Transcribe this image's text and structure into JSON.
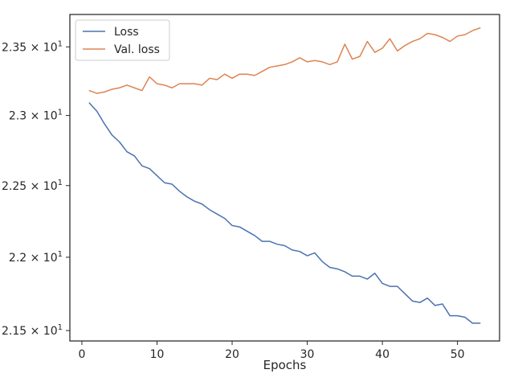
{
  "chart_data": {
    "type": "line",
    "title": "",
    "xlabel": "Epochs",
    "ylabel": "",
    "yscale": "log",
    "xlim": [
      -1.6,
      55.6
    ],
    "ylim": [
      21.43,
      23.74
    ],
    "grid": false,
    "legend_position": "top-left",
    "x_ticks": [
      {
        "value": 0,
        "label": "0"
      },
      {
        "value": 10,
        "label": "10"
      },
      {
        "value": 20,
        "label": "20"
      },
      {
        "value": 30,
        "label": "30"
      },
      {
        "value": 40,
        "label": "40"
      },
      {
        "value": 50,
        "label": "50"
      }
    ],
    "y_ticks": [
      {
        "value": 21.5,
        "mantissa": "2.15",
        "base": "10",
        "exp": "1"
      },
      {
        "value": 22.0,
        "mantissa": "2.2",
        "base": "10",
        "exp": "1"
      },
      {
        "value": 22.5,
        "mantissa": "2.25",
        "base": "10",
        "exp": "1"
      },
      {
        "value": 23.0,
        "mantissa": "2.3",
        "base": "10",
        "exp": "1"
      },
      {
        "value": 23.5,
        "mantissa": "2.35",
        "base": "10",
        "exp": "1"
      }
    ],
    "x": [
      1,
      2,
      3,
      4,
      5,
      6,
      7,
      8,
      9,
      10,
      11,
      12,
      13,
      14,
      15,
      16,
      17,
      18,
      19,
      20,
      21,
      22,
      23,
      24,
      25,
      26,
      27,
      28,
      29,
      30,
      31,
      32,
      33,
      34,
      35,
      36,
      37,
      38,
      39,
      40,
      41,
      42,
      43,
      44,
      45,
      46,
      47,
      48,
      49,
      50,
      51,
      52,
      53
    ],
    "series": [
      {
        "name": "Loss",
        "color": "#4c72b0",
        "values": [
          23.09,
          23.03,
          22.94,
          22.86,
          22.81,
          22.74,
          22.71,
          22.64,
          22.62,
          22.57,
          22.52,
          22.51,
          22.46,
          22.42,
          22.39,
          22.37,
          22.33,
          22.3,
          22.27,
          22.22,
          22.21,
          22.18,
          22.15,
          22.11,
          22.11,
          22.09,
          22.08,
          22.05,
          22.04,
          22.01,
          22.03,
          21.97,
          21.93,
          21.92,
          21.9,
          21.87,
          21.87,
          21.85,
          21.89,
          21.82,
          21.8,
          21.8,
          21.75,
          21.7,
          21.69,
          21.72,
          21.67,
          21.68,
          21.6,
          21.6,
          21.59,
          21.55,
          21.55
        ]
      },
      {
        "name": "Val. loss",
        "color": "#dd8452",
        "values": [
          23.18,
          23.16,
          23.17,
          23.19,
          23.2,
          23.22,
          23.2,
          23.18,
          23.28,
          23.23,
          23.22,
          23.2,
          23.23,
          23.23,
          23.23,
          23.22,
          23.27,
          23.26,
          23.3,
          23.27,
          23.3,
          23.3,
          23.29,
          23.32,
          23.35,
          23.36,
          23.37,
          23.39,
          23.42,
          23.39,
          23.4,
          23.39,
          23.37,
          23.39,
          23.52,
          23.41,
          23.43,
          23.54,
          23.46,
          23.49,
          23.56,
          23.47,
          23.51,
          23.54,
          23.56,
          23.6,
          23.59,
          23.57,
          23.54,
          23.58,
          23.59,
          23.62,
          23.64
        ]
      }
    ]
  }
}
